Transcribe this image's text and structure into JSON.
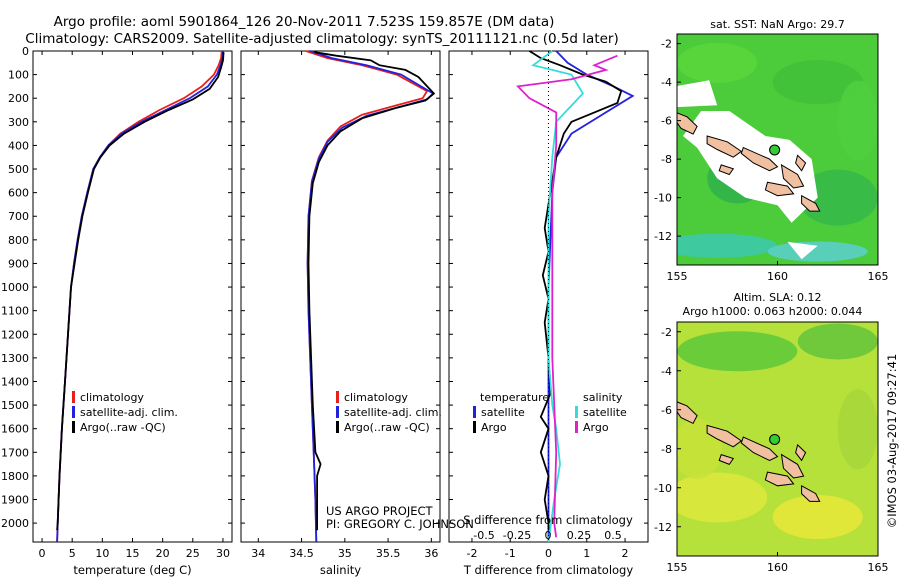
{
  "title_line1": "Argo profile: aoml 5901864_126 20-Nov-2011 7.523S 159.857E (DM data)",
  "title_line2": "Climatology: CARS2009. Satellite-adjusted climatology: synTS_20111121.nc (0.5d later)",
  "watermark": "©IMOS 03-Aug-2017 09:27:41",
  "colors": {
    "climatology": "#e8201c",
    "satellite": "#2222dd",
    "argo": "#000000",
    "sal_satellite": "#33dddd",
    "sal_argo": "#dd22cc"
  },
  "chart_data": [
    {
      "id": "temperature",
      "type": "line",
      "xlabel": "temperature (deg C)",
      "xlim": [
        -1.5,
        31.5
      ],
      "xticks": [
        0,
        5,
        10,
        15,
        20,
        25,
        30
      ],
      "ylim": [
        0,
        2080
      ],
      "yticks": [
        0,
        100,
        200,
        300,
        400,
        500,
        600,
        700,
        800,
        900,
        1000,
        1100,
        1200,
        1300,
        1400,
        1500,
        1600,
        1700,
        1800,
        1900,
        2000
      ],
      "legend": [
        "climatology",
        "satellite-adj. clim.",
        "Argo(..raw -QC)"
      ],
      "series": [
        {
          "name": "climatology",
          "color": "climatology",
          "points": [
            [
              29.8,
              0
            ],
            [
              29.7,
              30
            ],
            [
              29.3,
              60
            ],
            [
              28.5,
              100
            ],
            [
              26.5,
              150
            ],
            [
              23.5,
              200
            ],
            [
              19.5,
              250
            ],
            [
              16,
              300
            ],
            [
              13,
              350
            ],
            [
              11,
              400
            ],
            [
              9.6,
              450
            ],
            [
              8.5,
              500
            ],
            [
              7.5,
              600
            ],
            [
              6.6,
              700
            ],
            [
              5.9,
              800
            ],
            [
              5.3,
              900
            ],
            [
              4.8,
              1000
            ],
            [
              4.3,
              1200
            ],
            [
              3.8,
              1400
            ],
            [
              3.3,
              1600
            ],
            [
              2.9,
              1800
            ],
            [
              2.6,
              2000
            ],
            [
              2.5,
              2080
            ]
          ]
        },
        {
          "name": "satellite-adj. clim.",
          "color": "satellite",
          "points": [
            [
              30,
              0
            ],
            [
              29.9,
              30
            ],
            [
              29.6,
              60
            ],
            [
              29,
              100
            ],
            [
              27.5,
              150
            ],
            [
              24.5,
              200
            ],
            [
              20.5,
              250
            ],
            [
              16.5,
              300
            ],
            [
              13.2,
              350
            ],
            [
              11,
              400
            ],
            [
              9.6,
              450
            ],
            [
              8.5,
              500
            ],
            [
              7.5,
              600
            ],
            [
              6.6,
              700
            ],
            [
              5.9,
              800
            ],
            [
              5.3,
              900
            ],
            [
              4.8,
              1000
            ],
            [
              4.3,
              1200
            ],
            [
              3.8,
              1400
            ],
            [
              3.3,
              1600
            ],
            [
              2.9,
              1800
            ],
            [
              2.6,
              2000
            ],
            [
              2.5,
              2080
            ]
          ]
        },
        {
          "name": "Argo(..raw -QC)",
          "color": "argo",
          "points": [
            [
              30.1,
              5
            ],
            [
              30,
              40
            ],
            [
              29.7,
              70
            ],
            [
              29.2,
              110
            ],
            [
              27.8,
              160
            ],
            [
              25,
              205
            ],
            [
              21,
              250
            ],
            [
              17,
              300
            ],
            [
              13.6,
              350
            ],
            [
              11.2,
              400
            ],
            [
              9.7,
              450
            ],
            [
              8.6,
              500
            ],
            [
              7.6,
              600
            ],
            [
              6.7,
              700
            ],
            [
              6,
              800
            ],
            [
              5.4,
              900
            ],
            [
              4.8,
              1000
            ],
            [
              4.3,
              1200
            ],
            [
              3.8,
              1400
            ],
            [
              3.3,
              1600
            ],
            [
              2.9,
              1800
            ],
            [
              2.6,
              2000
            ],
            [
              2.5,
              2030
            ]
          ]
        }
      ]
    },
    {
      "id": "salinity",
      "type": "line",
      "xlabel": "salinity",
      "xlim": [
        33.8,
        36.1
      ],
      "xticks": [
        34,
        34.5,
        35,
        35.5,
        36
      ],
      "ylim": [
        0,
        2080
      ],
      "legend": [
        "climatology",
        "satellite-adj. clim.",
        "Argo(..raw -QC)"
      ],
      "annotation": [
        "US ARGO PROJECT",
        "PI: GREGORY C. JOHNSON"
      ],
      "series": [
        {
          "name": "climatology",
          "color": "climatology",
          "points": [
            [
              34.55,
              0
            ],
            [
              34.8,
              30
            ],
            [
              35.2,
              60
            ],
            [
              35.6,
              100
            ],
            [
              35.95,
              170
            ],
            [
              35.9,
              200
            ],
            [
              35.6,
              230
            ],
            [
              35.2,
              270
            ],
            [
              34.95,
              320
            ],
            [
              34.8,
              380
            ],
            [
              34.7,
              450
            ],
            [
              34.62,
              550
            ],
            [
              34.58,
              700
            ],
            [
              34.57,
              900
            ],
            [
              34.58,
              1100
            ],
            [
              34.6,
              1300
            ],
            [
              34.62,
              1500
            ],
            [
              34.64,
              1700
            ],
            [
              34.66,
              1900
            ],
            [
              34.67,
              2080
            ]
          ]
        },
        {
          "name": "satellite-adj. clim.",
          "color": "satellite",
          "points": [
            [
              34.6,
              0
            ],
            [
              34.85,
              30
            ],
            [
              35.25,
              60
            ],
            [
              35.65,
              100
            ],
            [
              36.02,
              180
            ],
            [
              35.95,
              205
            ],
            [
              35.65,
              235
            ],
            [
              35.25,
              275
            ],
            [
              34.97,
              325
            ],
            [
              34.8,
              385
            ],
            [
              34.7,
              455
            ],
            [
              34.62,
              555
            ],
            [
              34.58,
              700
            ],
            [
              34.57,
              900
            ],
            [
              34.58,
              1100
            ],
            [
              34.6,
              1300
            ],
            [
              34.62,
              1500
            ],
            [
              34.64,
              1700
            ],
            [
              34.66,
              1900
            ],
            [
              34.67,
              2080
            ]
          ]
        },
        {
          "name": "Argo(..raw -QC)",
          "color": "argo",
          "points": [
            [
              34.65,
              5
            ],
            [
              34.9,
              20
            ],
            [
              35.3,
              40
            ],
            [
              35.4,
              60
            ],
            [
              35.7,
              80
            ],
            [
              35.85,
              110
            ],
            [
              36.03,
              180
            ],
            [
              35.93,
              210
            ],
            [
              35.6,
              240
            ],
            [
              35.2,
              285
            ],
            [
              34.95,
              340
            ],
            [
              34.8,
              400
            ],
            [
              34.7,
              470
            ],
            [
              34.63,
              560
            ],
            [
              34.59,
              700
            ],
            [
              34.58,
              900
            ],
            [
              34.59,
              1100
            ],
            [
              34.61,
              1300
            ],
            [
              34.63,
              1500
            ],
            [
              34.66,
              1700
            ],
            [
              34.72,
              1750
            ],
            [
              34.68,
              1800
            ],
            [
              34.68,
              2030
            ]
          ]
        }
      ]
    },
    {
      "id": "difference",
      "type": "line",
      "xlabel": "T difference from climatology",
      "xlabel_top": "S difference from climatology",
      "xlim": [
        -2.6,
        2.6
      ],
      "xticks": [
        -2,
        -1,
        0,
        1,
        2
      ],
      "xticks_top_labels": [
        "-0.5",
        "-0.25",
        "0",
        "0.25",
        "0.5"
      ],
      "ylim": [
        0,
        2080
      ],
      "legend_temperature_title": "temperature",
      "legend_salinity_title": "salinity",
      "legend_temperature": [
        "satellite",
        "Argo"
      ],
      "legend_salinity": [
        "satellite",
        "Argo"
      ],
      "series": [
        {
          "name": "temperature satellite",
          "color": "satellite",
          "points": [
            [
              0.2,
              0
            ],
            [
              0.5,
              50
            ],
            [
              1,
              100
            ],
            [
              1.7,
              150
            ],
            [
              2.2,
              190
            ],
            [
              1.5,
              260
            ],
            [
              0.6,
              350
            ],
            [
              0.2,
              450
            ],
            [
              0.1,
              600
            ],
            [
              0.05,
              800
            ],
            [
              0,
              1000
            ],
            [
              0,
              1200
            ],
            [
              0,
              1400
            ],
            [
              0,
              1600
            ],
            [
              0,
              1800
            ],
            [
              0,
              2080
            ]
          ]
        },
        {
          "name": "temperature Argo",
          "color": "argo",
          "points": [
            [
              -0.5,
              0
            ],
            [
              -0.2,
              30
            ],
            [
              0.3,
              60
            ],
            [
              0.9,
              100
            ],
            [
              1.5,
              130
            ],
            [
              1.9,
              170
            ],
            [
              1.8,
              220
            ],
            [
              1.2,
              260
            ],
            [
              0.6,
              300
            ],
            [
              0.4,
              350
            ],
            [
              0.2,
              450
            ],
            [
              0.1,
              550
            ],
            [
              0,
              650
            ],
            [
              -0.1,
              750
            ],
            [
              0,
              850
            ],
            [
              -0.15,
              950
            ],
            [
              0,
              1050
            ],
            [
              -0.1,
              1150
            ],
            [
              0,
              1300
            ],
            [
              0.05,
              1450
            ],
            [
              -0.2,
              1550
            ],
            [
              0,
              1600
            ],
            [
              -0.2,
              1700
            ],
            [
              0,
              1800
            ],
            [
              -0.1,
              1900
            ],
            [
              0,
              2000
            ],
            [
              0,
              2030
            ]
          ]
        },
        {
          "name": "salinity satellite",
          "color": "sal_satellite",
          "points": [
            [
              0.1,
              0
            ],
            [
              -0.4,
              60
            ],
            [
              0.6,
              100
            ],
            [
              0.9,
              180
            ],
            [
              0.2,
              300
            ],
            [
              0.1,
              450
            ],
            [
              0,
              700
            ],
            [
              0,
              1000
            ],
            [
              0,
              1300
            ],
            [
              0.1,
              1500
            ],
            [
              0.2,
              1600
            ],
            [
              0.3,
              1750
            ],
            [
              0.15,
              1900
            ],
            [
              0,
              2080
            ]
          ]
        },
        {
          "name": "salinity Argo",
          "color": "sal_argo",
          "points": [
            [
              1.8,
              20
            ],
            [
              1.2,
              60
            ],
            [
              1.5,
              80
            ],
            [
              0.6,
              120
            ],
            [
              -0.8,
              150
            ],
            [
              -0.5,
              200
            ],
            [
              0.2,
              260
            ],
            [
              0.2,
              400
            ],
            [
              0.1,
              600
            ],
            [
              0.1,
              900
            ],
            [
              0.1,
              1300
            ],
            [
              0.2,
              1700
            ],
            [
              0.15,
              2000
            ],
            [
              0.2,
              2060
            ]
          ]
        }
      ]
    }
  ],
  "maps": [
    {
      "id": "sst",
      "title": [
        "sat. SST: NaN Argo: 29.7"
      ],
      "xticks": [
        155,
        160,
        165
      ],
      "yticks": [
        -2,
        -4,
        -6,
        -8,
        -10,
        -12
      ],
      "xlim": [
        155,
        165
      ],
      "ylim": [
        -13.5,
        -1.5
      ],
      "marker": [
        159.857,
        -7.523
      ]
    },
    {
      "id": "sla",
      "title": [
        "Altim. SLA: 0.12",
        "Argo h1000: 0.063 h2000: 0.044"
      ],
      "xticks": [
        155,
        160,
        165
      ],
      "yticks": [
        -2,
        -4,
        -6,
        -8,
        -10,
        -12
      ],
      "xlim": [
        155,
        165
      ],
      "ylim": [
        -13.5,
        -1.5
      ],
      "marker": [
        159.857,
        -7.523
      ]
    }
  ]
}
